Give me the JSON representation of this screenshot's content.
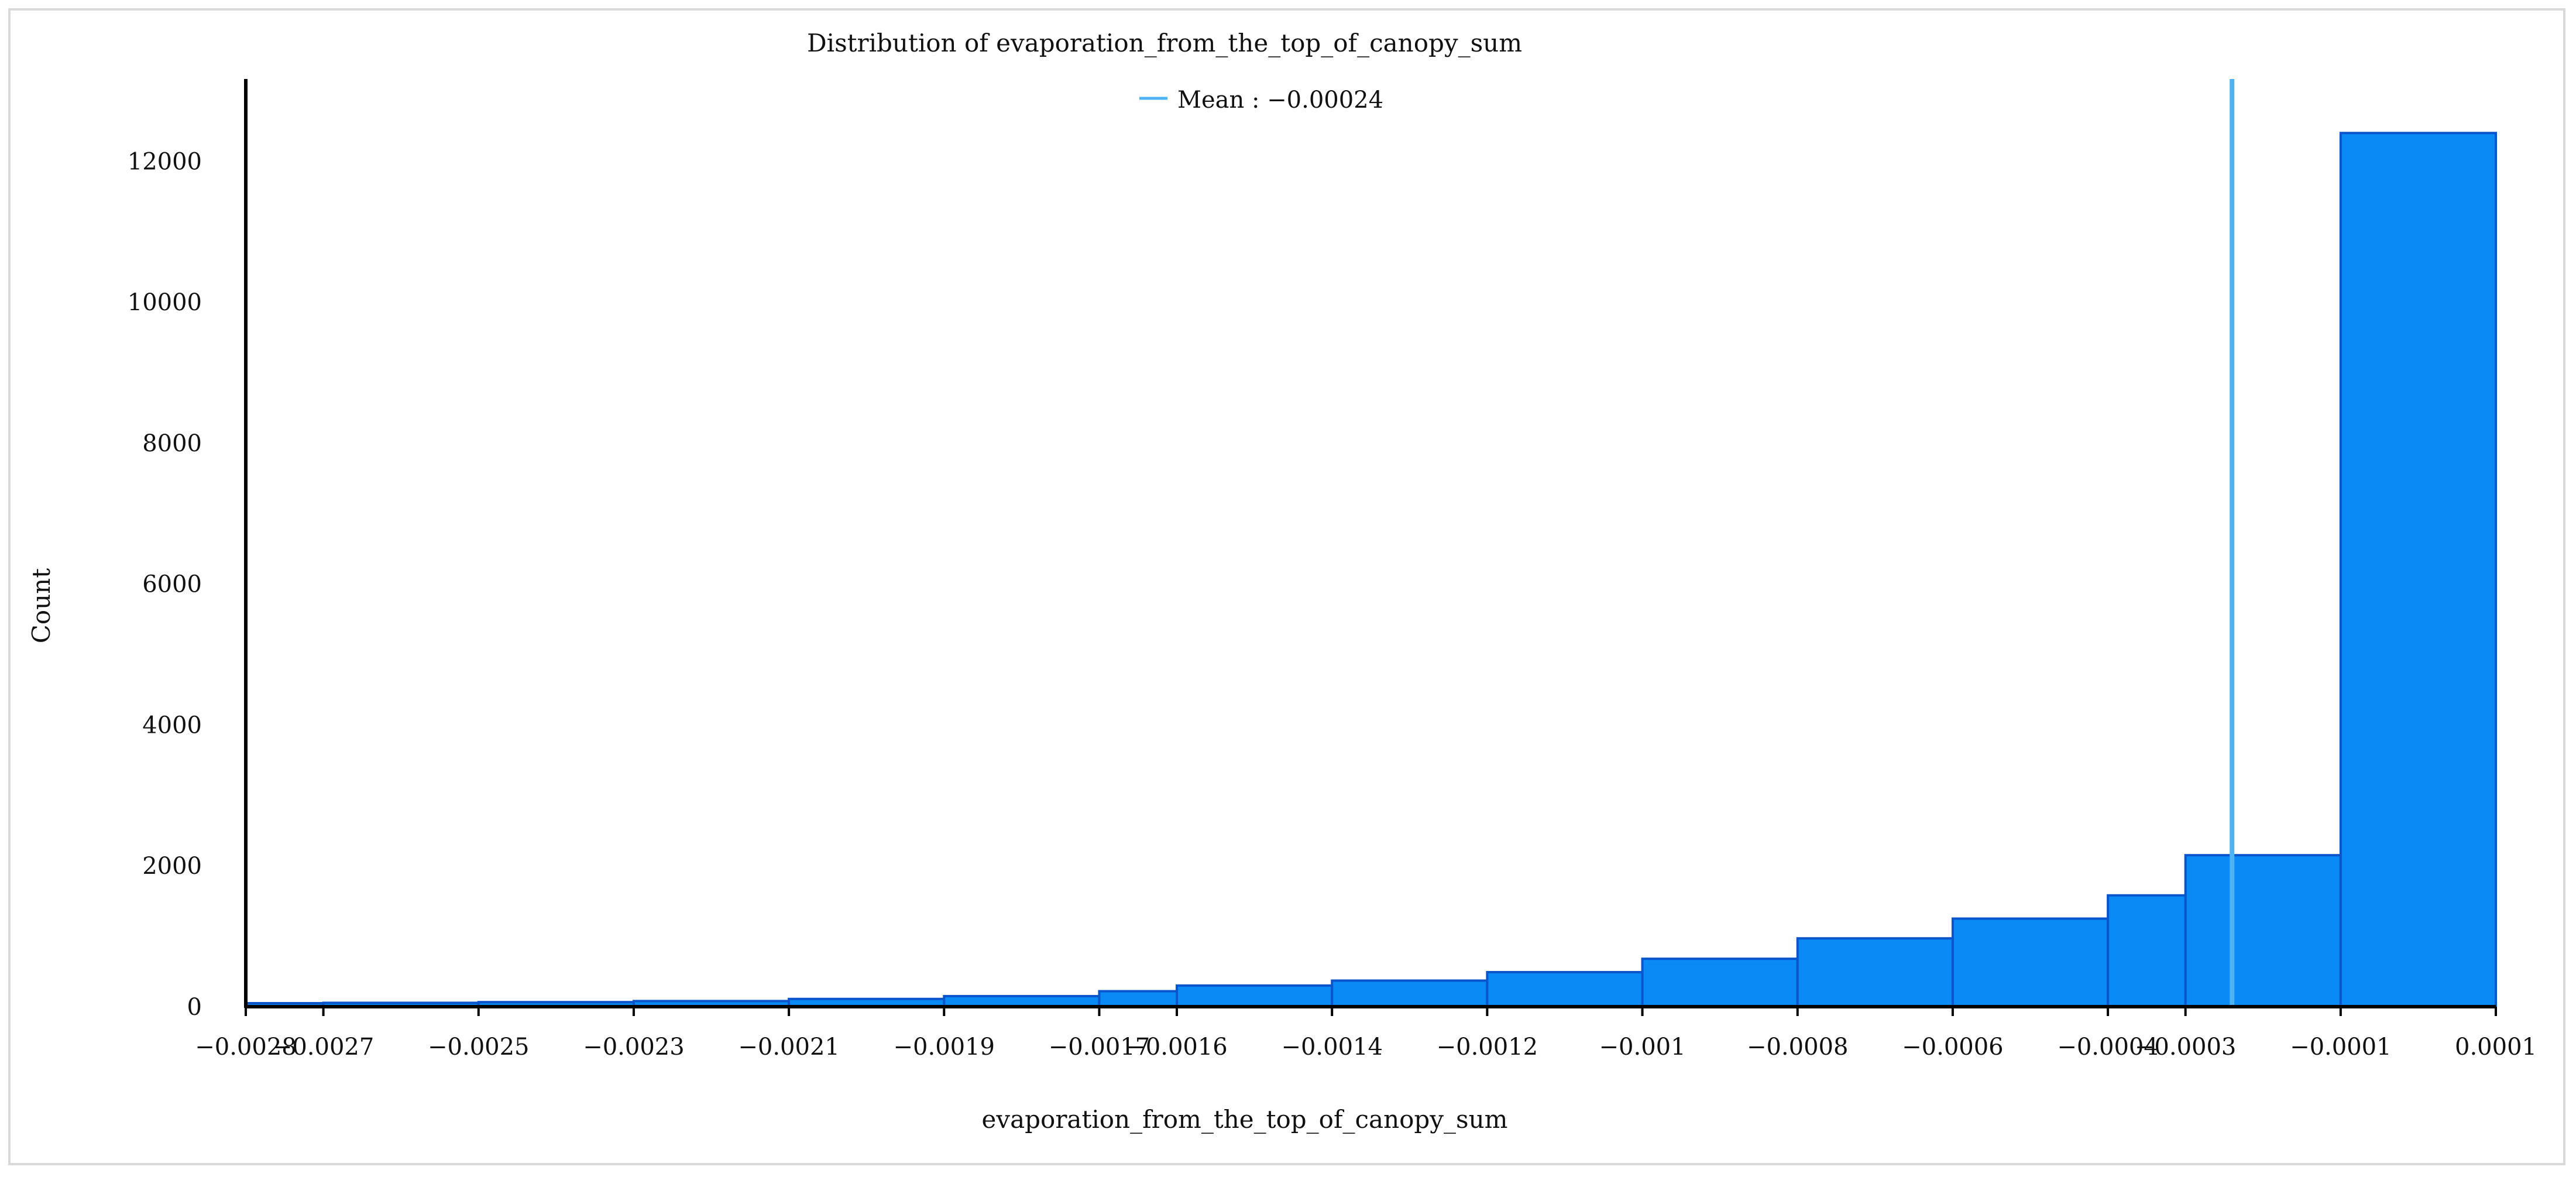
{
  "chart_data": {
    "type": "bar",
    "title": "Distribution of evaporation_from_the_top_of_canopy_sum",
    "xlabel": "evaporation_from_the_top_of_canopy_sum",
    "ylabel": "Count",
    "legend": {
      "position": "top-center",
      "entries": [
        {
          "label": "Mean : −0.00024",
          "color": "#4db3f5"
        }
      ]
    },
    "mean_line": {
      "value": -0.00024,
      "color": "#4db3f5"
    },
    "xlim": [
      -0.0028,
      0.0001
    ],
    "ylim": [
      0,
      13000
    ],
    "xticks": [
      {
        "value": -0.0028,
        "label": "−0.0028"
      },
      {
        "value": -0.0027,
        "label": "−0.0027"
      },
      {
        "value": -0.0025,
        "label": "−0.0025"
      },
      {
        "value": -0.0023,
        "label": "−0.0023"
      },
      {
        "value": -0.0021,
        "label": "−0.0021"
      },
      {
        "value": -0.0019,
        "label": "−0.0019"
      },
      {
        "value": -0.0017,
        "label": "−0.0017"
      },
      {
        "value": -0.0016,
        "label": "−0.0016"
      },
      {
        "value": -0.0014,
        "label": "−0.0014"
      },
      {
        "value": -0.0012,
        "label": "−0.0012"
      },
      {
        "value": -0.001,
        "label": "−0.001"
      },
      {
        "value": -0.0008,
        "label": "−0.0008"
      },
      {
        "value": -0.0006,
        "label": "−0.0006"
      },
      {
        "value": -0.0004,
        "label": "−0.0004"
      },
      {
        "value": -0.0003,
        "label": "−0.0003"
      },
      {
        "value": -0.0001,
        "label": "−0.0001"
      },
      {
        "value": 0.0001,
        "label": "0.0001"
      }
    ],
    "yticks": [
      {
        "value": 0,
        "label": "0"
      },
      {
        "value": 2000,
        "label": "2000"
      },
      {
        "value": 4000,
        "label": "4000"
      },
      {
        "value": 6000,
        "label": "6000"
      },
      {
        "value": 8000,
        "label": "8000"
      },
      {
        "value": 10000,
        "label": "10000"
      },
      {
        "value": 12000,
        "label": "12000"
      }
    ],
    "bins": [
      {
        "x0": -0.0028,
        "x1": -0.0027,
        "count": 50
      },
      {
        "x0": -0.0027,
        "x1": -0.0025,
        "count": 55
      },
      {
        "x0": -0.0025,
        "x1": -0.0023,
        "count": 65
      },
      {
        "x0": -0.0023,
        "x1": -0.0021,
        "count": 80
      },
      {
        "x0": -0.0021,
        "x1": -0.0019,
        "count": 110
      },
      {
        "x0": -0.0019,
        "x1": -0.0017,
        "count": 150
      },
      {
        "x0": -0.0017,
        "x1": -0.0016,
        "count": 220
      },
      {
        "x0": -0.0016,
        "x1": -0.0014,
        "count": 300
      },
      {
        "x0": -0.0014,
        "x1": -0.0012,
        "count": 370
      },
      {
        "x0": -0.0012,
        "x1": -0.001,
        "count": 490
      },
      {
        "x0": -0.001,
        "x1": -0.0008,
        "count": 680
      },
      {
        "x0": -0.0008,
        "x1": -0.0006,
        "count": 970
      },
      {
        "x0": -0.0006,
        "x1": -0.0004,
        "count": 1250
      },
      {
        "x0": -0.0004,
        "x1": -0.0003,
        "count": 1580
      },
      {
        "x0": -0.0003,
        "x1": -0.0001,
        "count": 2150
      },
      {
        "x0": -0.0001,
        "x1": 0.0001,
        "count": 12400
      }
    ],
    "colors": {
      "bar_fill": "#0a8af5",
      "bar_stroke": "#0a55cc",
      "mean_line": "#4db3f5",
      "axis": "#000000"
    },
    "grid": false
  }
}
